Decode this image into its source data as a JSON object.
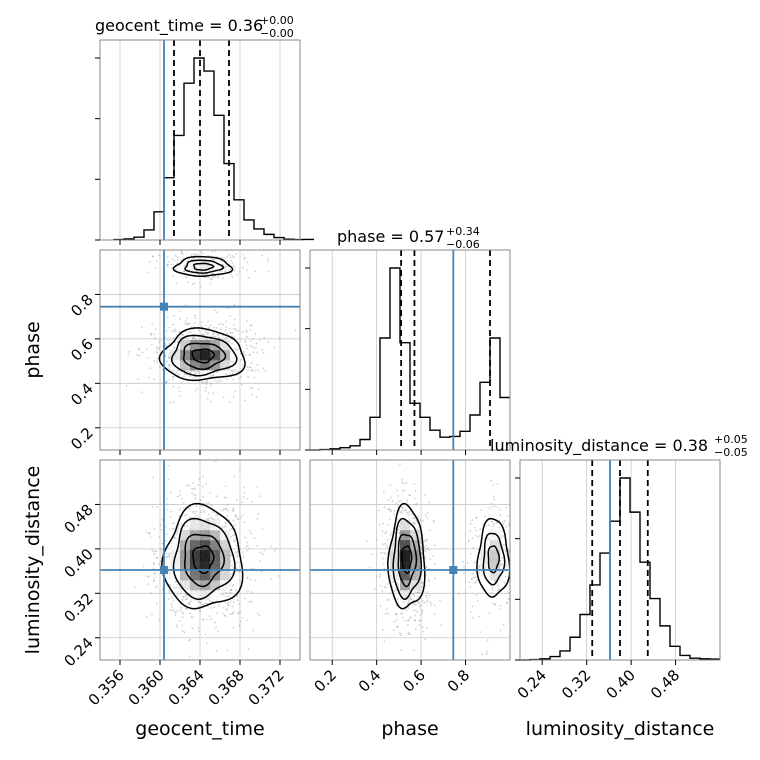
{
  "chart_data": {
    "type": "corner",
    "parameters": [
      "geocent_time",
      "phase",
      "luminosity_distance"
    ],
    "truths": {
      "geocent_time": 0.3604,
      "phase": 0.745,
      "luminosity_distance": 0.362
    },
    "truth_color": "#4682b4",
    "grid": true,
    "axes": {
      "geocent_time": {
        "xlabel": "geocent_time",
        "range": [
          0.354,
          0.374
        ],
        "ticks": [
          0.356,
          0.36,
          0.364,
          0.368,
          0.372
        ],
        "tick_labels": [
          "0.356",
          "0.360",
          "0.364",
          "0.368",
          "0.372"
        ]
      },
      "phase": {
        "xlabel": "phase",
        "ylabel": "phase",
        "range": [
          0.1,
          1.0
        ],
        "ticks": [
          0.2,
          0.4,
          0.6,
          0.8
        ],
        "tick_labels": [
          "0.2",
          "0.4",
          "0.6",
          "0.8"
        ]
      },
      "luminosity_distance": {
        "xlabel": "luminosity_distance",
        "ylabel": "luminosity_distance",
        "range": [
          0.2,
          0.56
        ],
        "ticks": [
          0.24,
          0.32,
          0.4,
          0.48
        ],
        "tick_labels": [
          "0.24",
          "0.32",
          "0.40",
          "0.48"
        ]
      }
    },
    "marginals": [
      {
        "param": "geocent_time",
        "title_main": "geocent_time = 0.36",
        "title_sup": "+0.00",
        "title_sub": "−0.00",
        "quantiles": [
          0.3614,
          0.364,
          0.3669
        ],
        "bins_start": 0.3554,
        "bin_width": 0.001,
        "counts": [
          2,
          5,
          14,
          50,
          140,
          310,
          520,
          780,
          905,
          840,
          620,
          380,
          200,
          100,
          55,
          28,
          12,
          4,
          2,
          3
        ]
      },
      {
        "param": "phase",
        "title_main": "phase = 0.57",
        "title_sup": "+0.34",
        "title_sub": "−0.06",
        "quantiles": [
          0.51,
          0.57,
          0.91
        ],
        "bins_start": 0.1,
        "bin_width": 0.045,
        "counts": [
          0,
          2,
          5,
          10,
          18,
          45,
          140,
          480,
          780,
          460,
          200,
          140,
          85,
          55,
          58,
          80,
          150,
          290,
          480,
          225
        ]
      },
      {
        "param": "luminosity_distance",
        "title_main": "luminosity_distance = 0.38",
        "title_sup": "+0.05",
        "title_sub": "−0.05",
        "quantiles": [
          0.33,
          0.38,
          0.43
        ],
        "bins_start": 0.2,
        "bin_width": 0.018,
        "counts": [
          0,
          2,
          5,
          15,
          40,
          100,
          200,
          330,
          470,
          610,
          800,
          650,
          430,
          270,
          150,
          60,
          20,
          8,
          5,
          4
        ]
      }
    ],
    "joint_2d": [
      {
        "x": "geocent_time",
        "y": "phase",
        "modes": [
          {
            "x": 0.3643,
            "y": 0.525,
            "sx": 0.0018,
            "sy": 0.05,
            "w": 0.78
          },
          {
            "x": 0.3643,
            "y": 0.925,
            "sx": 0.0016,
            "sy": 0.025,
            "w": 0.22
          }
        ]
      },
      {
        "x": "geocent_time",
        "y": "luminosity_distance",
        "modes": [
          {
            "x": 0.3643,
            "y": 0.382,
            "sx": 0.0017,
            "sy": 0.04,
            "w": 1.0
          }
        ]
      },
      {
        "x": "phase",
        "y": "luminosity_distance",
        "modes": [
          {
            "x": 0.535,
            "y": 0.382,
            "sx": 0.035,
            "sy": 0.04,
            "w": 0.72
          },
          {
            "x": 0.925,
            "y": 0.382,
            "sx": 0.04,
            "sy": 0.04,
            "w": 0.28
          }
        ]
      }
    ]
  }
}
